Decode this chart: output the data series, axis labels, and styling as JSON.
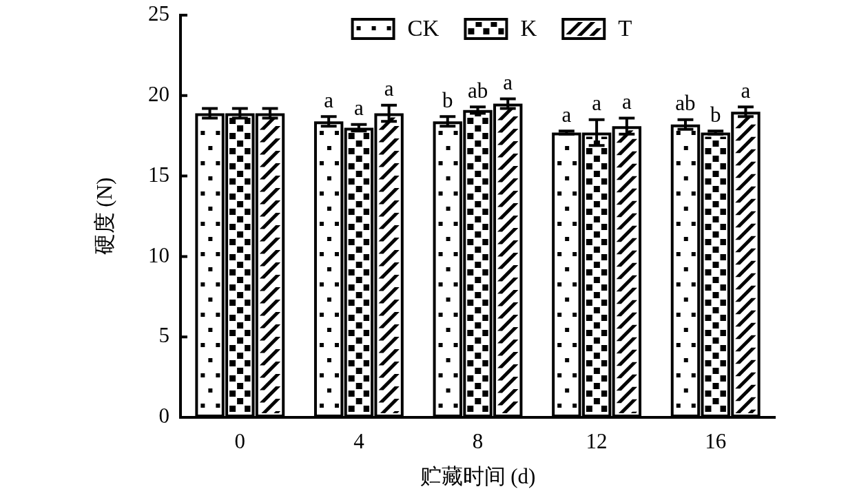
{
  "chart_data": {
    "type": "bar",
    "xlabel": "贮藏时间 (d)",
    "ylabel": "硬度 (N)",
    "categories": [
      "0",
      "4",
      "8",
      "12",
      "16"
    ],
    "series": [
      {
        "name": "CK",
        "color": "#000000",
        "values": [
          18.9,
          18.4,
          18.4,
          17.7,
          18.2
        ],
        "errors": [
          0.3,
          0.3,
          0.3,
          0.1,
          0.3
        ],
        "value_labels": [
          null,
          "a",
          "b",
          "a",
          "ab"
        ]
      },
      {
        "name": "K",
        "color": "#000000",
        "values": [
          18.9,
          18.0,
          19.1,
          17.7,
          17.7
        ],
        "errors": [
          0.3,
          0.2,
          0.2,
          0.8,
          0.1
        ],
        "value_labels": [
          null,
          "a",
          "ab",
          "a",
          "b"
        ]
      },
      {
        "name": "T",
        "color": "#000000",
        "values": [
          18.9,
          18.9,
          19.5,
          18.1,
          19.0
        ],
        "errors": [
          0.3,
          0.5,
          0.3,
          0.5,
          0.3
        ],
        "value_labels": [
          null,
          "a",
          "a",
          "a",
          "a"
        ]
      }
    ],
    "ylim": [
      0,
      25
    ],
    "yticks": [
      0,
      5,
      10,
      15,
      20,
      25
    ],
    "grid": false,
    "legend": "top"
  }
}
